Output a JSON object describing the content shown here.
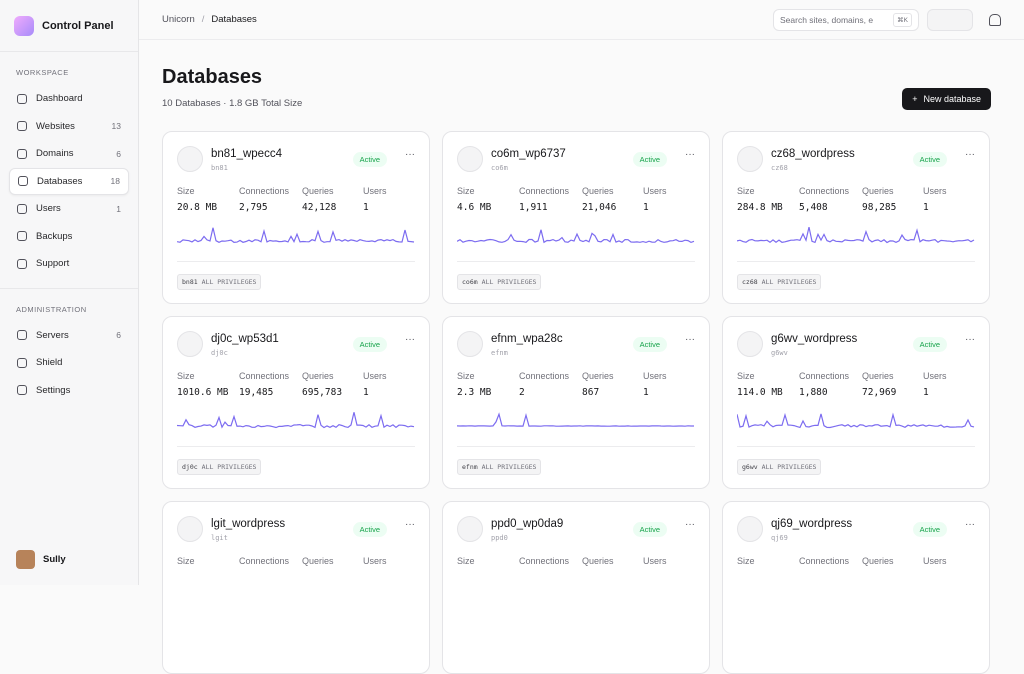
{
  "sidebar": {
    "brand": "Control Panel",
    "sections": [
      {
        "title": "WORKSPACE",
        "items": [
          {
            "label": "Dashboard"
          },
          {
            "label": "Websites",
            "count": "13"
          },
          {
            "label": "Domains",
            "count": "6"
          },
          {
            "label": "Databases",
            "count": "18",
            "active": true
          },
          {
            "label": "Users",
            "count": "1"
          },
          {
            "label": "Backups"
          },
          {
            "label": "Support"
          }
        ]
      },
      {
        "title": "ADMINISTRATION",
        "items": [
          {
            "label": "Servers",
            "count": "6"
          },
          {
            "label": "Shield"
          },
          {
            "label": "Settings"
          }
        ]
      }
    ],
    "user": "Sully"
  },
  "header": {
    "breadcrumb": [
      "Unicorn",
      "Databases"
    ],
    "search_placeholder": "Search sites, domains, e",
    "shortcut": "⌘K"
  },
  "page": {
    "title": "Databases",
    "subtitle": "10 Databases · 1.8 GB Total Size",
    "new_button": "New database"
  },
  "stat_labels": [
    "Size",
    "Connections",
    "Queries",
    "Users"
  ],
  "cards": [
    {
      "name": "bn81_wpecc4",
      "slug": "bn81",
      "status": "Active",
      "stats": [
        "20.8 MB",
        "2,795",
        "42,128",
        "1"
      ],
      "privileges": "ALL PRIVILEGES"
    },
    {
      "name": "co6m_wp6737",
      "slug": "co6m",
      "status": "Active",
      "stats": [
        "4.6 MB",
        "1,911",
        "21,046",
        "1"
      ],
      "privileges": "ALL PRIVILEGES"
    },
    {
      "name": "cz68_wordpress",
      "slug": "cz68",
      "status": "Active",
      "stats": [
        "284.8 MB",
        "5,408",
        "98,285",
        "1"
      ],
      "privileges": "ALL PRIVILEGES"
    },
    {
      "name": "dj0c_wp53d1",
      "slug": "dj0c",
      "status": "Active",
      "stats": [
        "1010.6 MB",
        "19,485",
        "695,783",
        "1"
      ],
      "privileges": "ALL PRIVILEGES"
    },
    {
      "name": "efnm_wpa28c",
      "slug": "efnm",
      "status": "Active",
      "stats": [
        "2.3 MB",
        "2",
        "867",
        "1"
      ],
      "privileges": "ALL PRIVILEGES"
    },
    {
      "name": "g6wv_wordpress",
      "slug": "g6wv",
      "status": "Active",
      "stats": [
        "114.0 MB",
        "1,880",
        "72,969",
        "1"
      ],
      "privileges": "ALL PRIVILEGES"
    },
    {
      "name": "lgit_wordpress",
      "slug": "lgit",
      "status": "Active"
    },
    {
      "name": "ppd0_wp0da9",
      "slug": "ppd0",
      "status": "Active"
    },
    {
      "name": "qj69_wordpress",
      "slug": "qj69",
      "status": "Active"
    }
  ]
}
